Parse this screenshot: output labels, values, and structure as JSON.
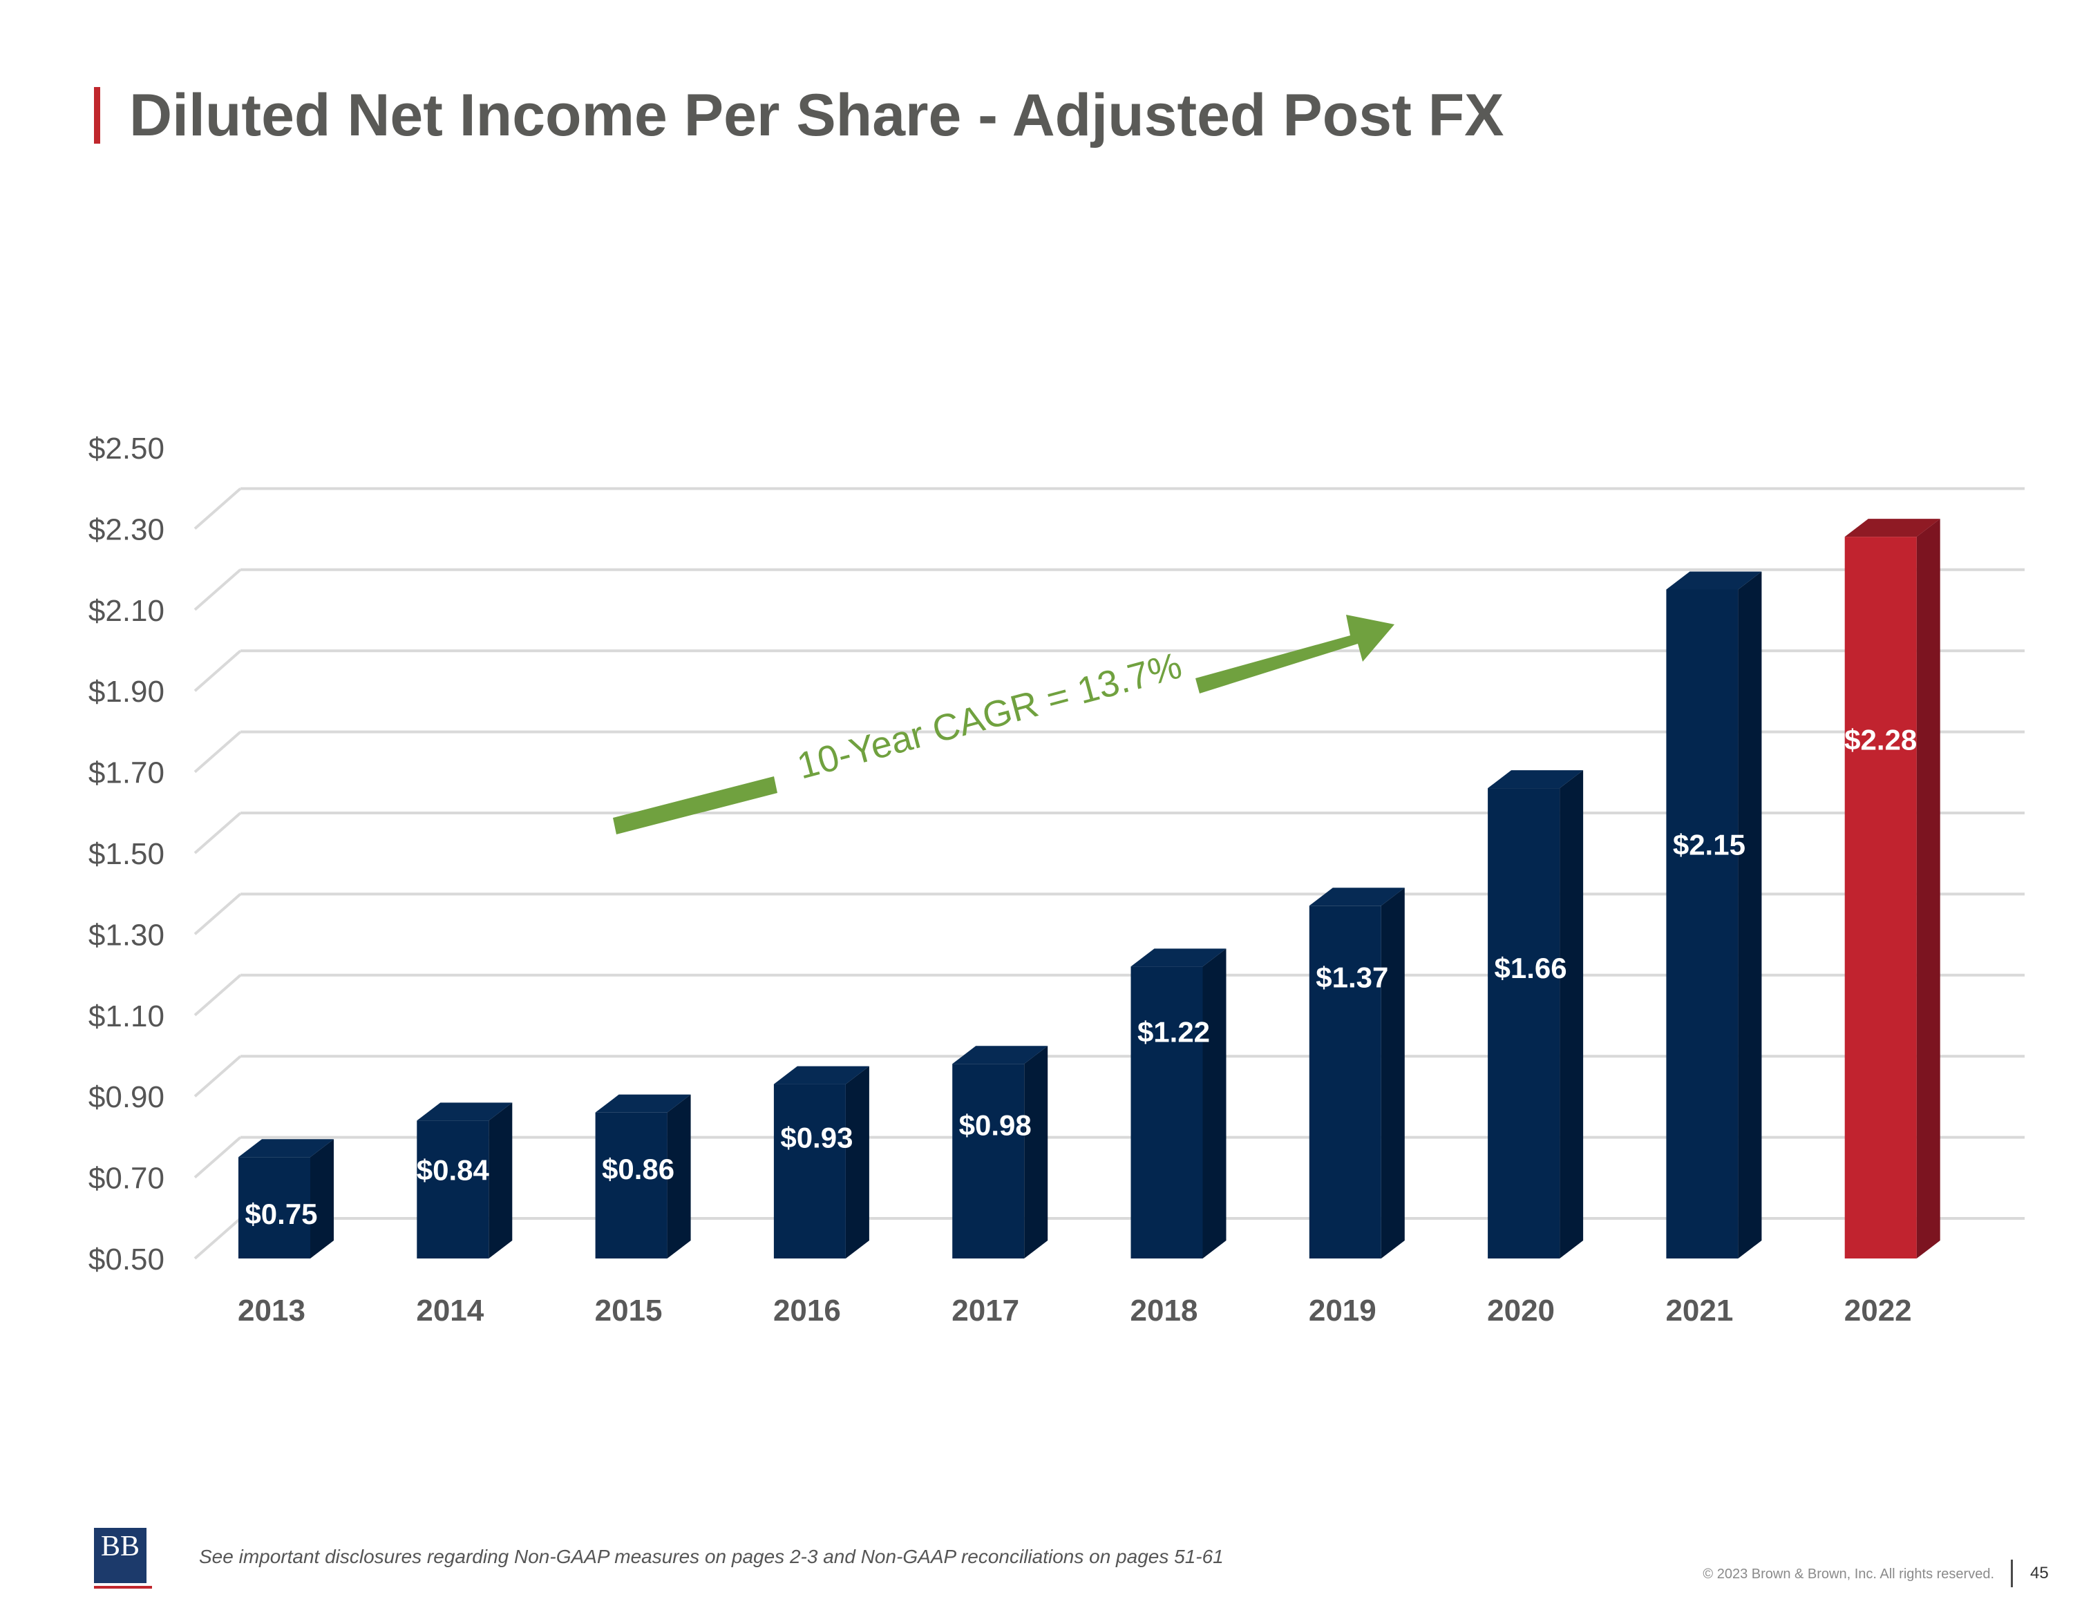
{
  "header": {
    "title": "Diluted Net Income Per Share - Adjusted Post FX"
  },
  "colors": {
    "accent_red": "#c0272d",
    "bar_navy": "#03264f",
    "bar_red": "#c1232f",
    "title_gray": "#5a5a57",
    "cagr_green": "#70a13f",
    "grid": "#d9d9d9"
  },
  "chart_data": {
    "type": "bar",
    "title": "",
    "xlabel": "",
    "ylabel": "",
    "categories": [
      "2013",
      "2014",
      "2015",
      "2016",
      "2017",
      "2018",
      "2019",
      "2020",
      "2021",
      "2022"
    ],
    "values": [
      0.75,
      0.84,
      0.86,
      0.93,
      0.98,
      1.22,
      1.37,
      1.66,
      2.15,
      2.28
    ],
    "data_labels": [
      "$0.75",
      "$0.84",
      "$0.86",
      "$0.93",
      "$0.98",
      "$1.22",
      "$1.37",
      "$1.66",
      "$2.15",
      "$2.28"
    ],
    "highlight_index": 9,
    "ylim": [
      0.5,
      2.5
    ],
    "yticks": [
      0.5,
      0.7,
      0.9,
      1.1,
      1.3,
      1.5,
      1.7,
      1.9,
      2.1,
      2.3,
      2.5
    ],
    "ytick_labels": [
      "$0.50",
      "$0.70",
      "$0.90",
      "$1.10",
      "$1.30",
      "$1.50",
      "$1.70",
      "$1.90",
      "$2.10",
      "$2.30",
      "$2.50"
    ],
    "grid": true,
    "style": "3d-columns",
    "annotation": "10-Year CAGR = 13.7%"
  },
  "footer": {
    "disclosure": "See important disclosures regarding Non-GAAP measures on pages 2-3 and Non-GAAP reconciliations on pages 51-61",
    "copyright": "© 2023 Brown & Brown, Inc. All rights reserved.",
    "page_number": "45",
    "logo_text": "BB"
  }
}
